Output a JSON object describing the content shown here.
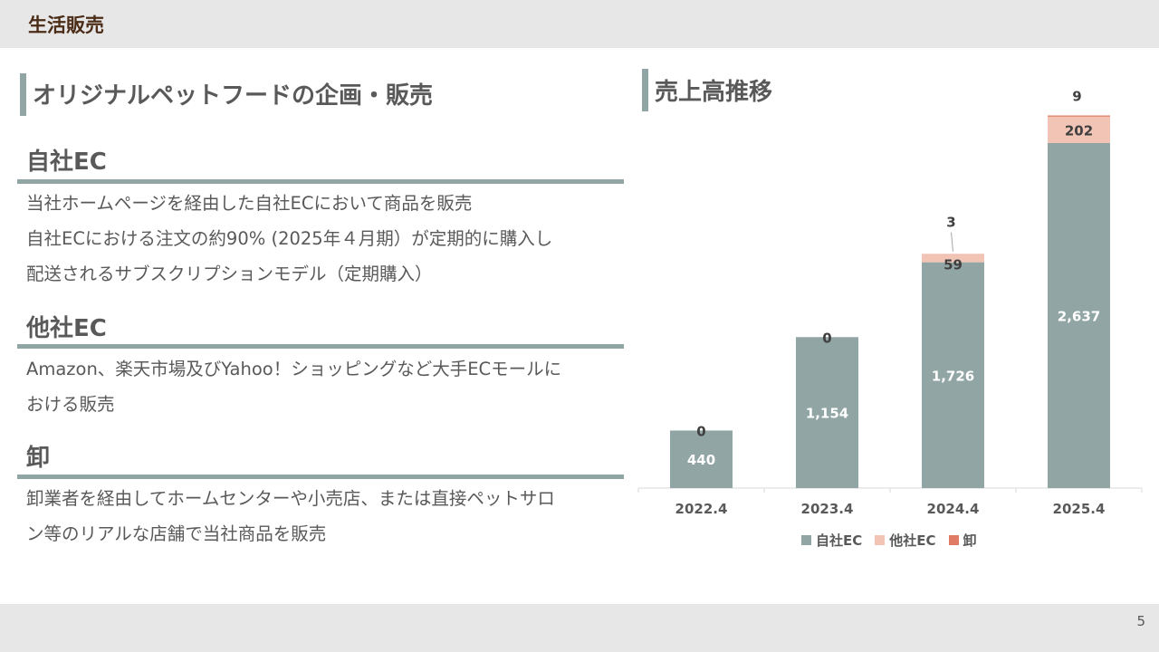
{
  "header": {
    "title": "生活販売"
  },
  "page_number": "5",
  "left": {
    "heading": "オリジナルペットフードの企画・販売",
    "sections": [
      {
        "title": "自社EC",
        "lines": [
          "当社ホームページを経由した自社ECにおいて商品を販売",
          "自社ECにおける注文の約90% (2025年４月期）が定期的に購入し",
          "配送されるサブスクリプションモデル（定期購入）"
        ]
      },
      {
        "title": "他社EC",
        "lines": [
          "Amazon、楽天市場及びYahoo！ショッピングなど大手ECモールに",
          "おける販売"
        ]
      },
      {
        "title": "卸",
        "lines": [
          "卸業者を経由してホームセンターや小売店、または直接ペットサロ",
          "ン等のリアルな店舗で当社商品を販売"
        ]
      }
    ]
  },
  "right": {
    "heading": "売上高推移"
  },
  "chart_data": {
    "type": "bar",
    "stacked": true,
    "categories": [
      "2022.4",
      "2023.4",
      "2024.4",
      "2025.4"
    ],
    "series": [
      {
        "name": "自社EC",
        "values": [
          440,
          1154,
          1726,
          2637
        ],
        "labels": [
          "440",
          "1,154",
          "1,726",
          "2,637"
        ],
        "color": "#92a5a5"
      },
      {
        "name": "他社EC",
        "values": [
          0,
          0,
          59,
          202
        ],
        "labels": [
          "0",
          "0",
          "59",
          "202"
        ],
        "color": "#f2c4b5"
      },
      {
        "name": "卸",
        "values": [
          0,
          0,
          3,
          9
        ],
        "labels": [
          "0",
          "0",
          "3",
          "9"
        ],
        "color": "#e07a62"
      }
    ],
    "title": "",
    "xlabel": "",
    "ylabel": "",
    "ylim": [
      0,
      2900
    ],
    "grid": false,
    "legend": "bottom"
  },
  "colors": {
    "accent": "#92a5a5",
    "header_text": "#4a2c17",
    "text": "#595959"
  }
}
